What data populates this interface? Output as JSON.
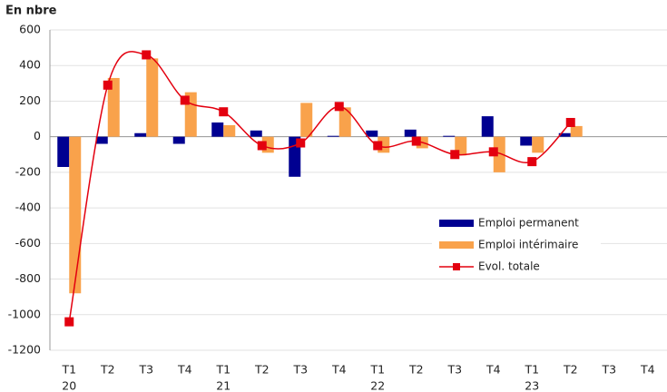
{
  "chart_data": {
    "type": "bar-line",
    "title": "En nbre",
    "categories": [
      "T1",
      "T2",
      "T3",
      "T4",
      "T1",
      "T2",
      "T3",
      "T4",
      "T1",
      "T2",
      "T3",
      "T4",
      "T1",
      "T2",
      "T3",
      "T4"
    ],
    "year_labels": [
      "20",
      null,
      null,
      null,
      "21",
      null,
      null,
      null,
      "22",
      null,
      null,
      null,
      "23",
      null,
      null,
      null
    ],
    "series": [
      {
        "name": "Emploi permanent",
        "color": "#000091",
        "kind": "bar",
        "values": [
          -170,
          -40,
          20,
          -40,
          80,
          35,
          -225,
          5,
          35,
          40,
          5,
          115,
          -50,
          20,
          null,
          null
        ]
      },
      {
        "name": "Emploi intérimaire",
        "color": "#f9a24b",
        "kind": "bar",
        "values": [
          -880,
          330,
          440,
          250,
          65,
          -90,
          190,
          165,
          -90,
          -65,
          -105,
          -200,
          -90,
          60,
          null,
          null
        ]
      },
      {
        "name": "Evol. totale",
        "color": "#e3000f",
        "kind": "line",
        "values": [
          -1040,
          290,
          460,
          205,
          140,
          -50,
          -35,
          170,
          -50,
          -25,
          -100,
          -85,
          -140,
          80,
          null,
          null
        ]
      }
    ],
    "ylim": [
      -1200,
      600
    ],
    "yticks": [
      -1200,
      -1000,
      -800,
      -600,
      -400,
      -200,
      0,
      200,
      400,
      600
    ],
    "grid": true
  }
}
